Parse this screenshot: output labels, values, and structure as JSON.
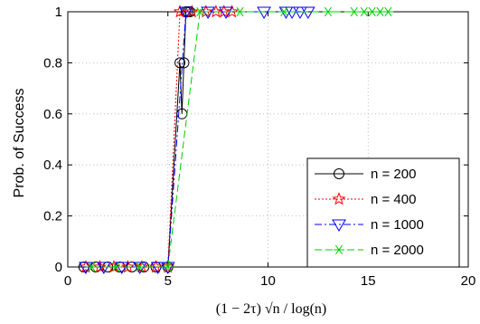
{
  "chart_data": {
    "type": "line",
    "title": "",
    "xlabel": "(1 − 2τ) √n / log(n)",
    "ylabel": "Prob. of Success",
    "xlim": [
      0,
      20
    ],
    "ylim": [
      0,
      1
    ],
    "xticks": [
      "0",
      "5",
      "10",
      "15",
      "20"
    ],
    "yticks": [
      "0",
      "0.2",
      "0.4",
      "0.6",
      "0.8",
      "1"
    ],
    "grid": "dotted",
    "legend_position": "bottom-right",
    "series": [
      {
        "name": "n = 200",
        "color": "#000000",
        "dash": "solid",
        "marker": "circle",
        "x": [
          0.8,
          1.4,
          2.0,
          2.6,
          3.2,
          3.8,
          4.4,
          5.0,
          5.6,
          5.7,
          5.8,
          5.9,
          6.0,
          6.1
        ],
        "y": [
          0,
          0,
          0,
          0,
          0,
          0,
          0,
          0,
          0.8,
          0.6,
          0.8,
          1,
          1,
          1
        ]
      },
      {
        "name": "n = 400",
        "color": "#ff0000",
        "dash": "dotted",
        "marker": "star",
        "x": [
          0.9,
          1.6,
          2.3,
          3.0,
          3.7,
          4.4,
          5.0,
          5.6,
          6.2,
          6.9,
          7.4,
          7.8,
          8.2
        ],
        "y": [
          0,
          0,
          0,
          0,
          0,
          0,
          0,
          1,
          1,
          1,
          1,
          1,
          1
        ]
      },
      {
        "name": "n = 1000",
        "color": "#0000ff",
        "dash": "dashdot",
        "marker": "triangle-down",
        "x": [
          0.9,
          1.8,
          2.7,
          3.6,
          4.5,
          5.0,
          5.9,
          7.0,
          7.9,
          9.8,
          10.9,
          11.2,
          11.6,
          12.0
        ],
        "y": [
          0,
          0,
          0,
          0,
          0,
          0,
          1,
          1,
          1,
          1,
          1,
          1,
          1,
          1
        ]
      },
      {
        "name": "n = 2000",
        "color": "#00cc00",
        "dash": "dashed",
        "marker": "asterisk",
        "x": [
          1.2,
          2.4,
          3.6,
          5.0,
          6.6,
          8.6,
          10.8,
          13.0,
          14.3,
          14.8,
          15.2,
          15.6,
          16.0
        ],
        "y": [
          0,
          0,
          0,
          0,
          1,
          1,
          1,
          1,
          1,
          1,
          1,
          1,
          1
        ]
      }
    ]
  }
}
